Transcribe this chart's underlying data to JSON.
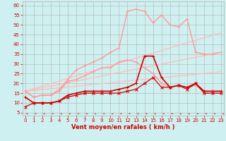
{
  "bg_color": "#cff0f0",
  "grid_color": "#b0b0b0",
  "xlabel": "Vent moyen/en rafales ( km/h )",
  "xlabel_color": "#cc0000",
  "tick_color": "#cc0000",
  "yticks": [
    5,
    10,
    15,
    20,
    25,
    30,
    35,
    40,
    45,
    50,
    55,
    60
  ],
  "xticks": [
    0,
    1,
    2,
    3,
    4,
    5,
    6,
    7,
    8,
    9,
    10,
    11,
    12,
    13,
    14,
    15,
    16,
    17,
    18,
    19,
    20,
    21,
    22,
    23
  ],
  "xlim": [
    -0.3,
    23.3
  ],
  "ylim": [
    3.5,
    62
  ],
  "series": [
    {
      "x": [
        0,
        1,
        2,
        3,
        4,
        5,
        6,
        7,
        8,
        9,
        10,
        11,
        12,
        13,
        14,
        15,
        16,
        17,
        18,
        19,
        20,
        21,
        22,
        23
      ],
      "y": [
        8,
        10,
        10,
        10,
        11,
        13,
        14,
        15,
        15,
        15,
        15,
        15,
        16,
        17,
        20,
        23,
        18,
        18,
        19,
        17,
        20,
        15,
        15,
        15
      ],
      "color": "#cc0000",
      "lw": 0.9,
      "marker": "x",
      "ms": 2.5,
      "zorder": 4
    },
    {
      "x": [
        0,
        1,
        2,
        3,
        4,
        5,
        6,
        7,
        8,
        9,
        10,
        11,
        12,
        13,
        14,
        15,
        16,
        17,
        18,
        19,
        20,
        21,
        22,
        23
      ],
      "y": [
        13,
        10,
        10,
        10,
        11,
        14,
        15,
        16,
        16,
        16,
        16,
        17,
        18,
        20,
        34,
        34,
        23,
        18,
        19,
        18,
        20,
        16,
        16,
        16
      ],
      "color": "#cc0000",
      "lw": 1.2,
      "marker": "+",
      "ms": 3,
      "zorder": 4
    },
    {
      "x": [
        0,
        1,
        2,
        3,
        4,
        5,
        6,
        7,
        8,
        9,
        10,
        11,
        12,
        13,
        14,
        15,
        16,
        17,
        18,
        19,
        20,
        21,
        22,
        23
      ],
      "y": [
        16,
        13,
        14,
        14,
        16,
        21,
        22,
        24,
        26,
        28,
        28,
        31,
        32,
        31,
        28,
        25,
        20,
        18,
        19,
        18,
        19,
        16,
        16,
        16
      ],
      "color": "#ff9999",
      "lw": 1.0,
      "marker": "+",
      "ms": 2.5,
      "zorder": 3
    },
    {
      "x": [
        0,
        1,
        2,
        3,
        4,
        5,
        6,
        7,
        8,
        9,
        10,
        11,
        12,
        13,
        14,
        15,
        16,
        17,
        18,
        19,
        20,
        21,
        22,
        23
      ],
      "y": [
        16,
        13,
        14,
        14,
        17,
        22,
        27,
        29,
        31,
        33,
        36,
        38,
        57,
        58,
        57,
        51,
        55,
        50,
        49,
        53,
        36,
        35,
        35,
        36
      ],
      "color": "#ff9999",
      "lw": 1.0,
      "marker": "+",
      "ms": 2.5,
      "zorder": 3
    },
    {
      "x": [
        0,
        23
      ],
      "y": [
        16,
        36
      ],
      "color": "#ffbbbb",
      "lw": 0.9,
      "marker": null,
      "ms": 0,
      "zorder": 2
    },
    {
      "x": [
        0,
        23
      ],
      "y": [
        16,
        46
      ],
      "color": "#ffbbbb",
      "lw": 0.9,
      "marker": null,
      "ms": 0,
      "zorder": 2
    },
    {
      "x": [
        0,
        23
      ],
      "y": [
        16,
        26
      ],
      "color": "#ffbbbb",
      "lw": 0.9,
      "marker": null,
      "ms": 0,
      "zorder": 2
    }
  ]
}
